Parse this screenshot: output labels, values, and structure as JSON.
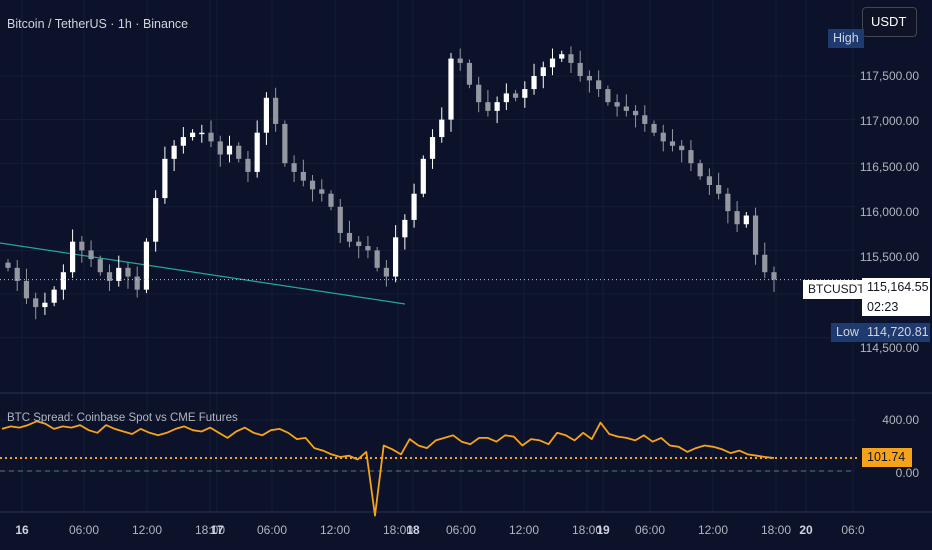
{
  "header": {
    "symbol_title": "Bitcoin / TetherUS · 1h · Binance",
    "currency_button": "USDT"
  },
  "price_axis": {
    "ticks": [
      "117,500.00",
      "117,000.00",
      "116,500.00",
      "116,000.00",
      "115,500.00",
      "114,500.00"
    ],
    "high_label": "High",
    "low_label": "Low",
    "low_value": "114,720.81",
    "symbol_tag": "BTCUSDT",
    "last_price": "115,164.55",
    "countdown": "02:23"
  },
  "indicator": {
    "title": "BTC Spread: Coinbase Spot vs CME Futures",
    "ticks": [
      "400.00",
      "0.00"
    ],
    "current_value": "101.74"
  },
  "time_axis": [
    {
      "label": "16",
      "day": true
    },
    {
      "label": "06:00",
      "day": false
    },
    {
      "label": "12:00",
      "day": false
    },
    {
      "label": "18:00",
      "day": false
    },
    {
      "label": "17",
      "day": true
    },
    {
      "label": "06:00",
      "day": false
    },
    {
      "label": "12:00",
      "day": false
    },
    {
      "label": "18:00",
      "day": false
    },
    {
      "label": "18",
      "day": true
    },
    {
      "label": "06:00",
      "day": false
    },
    {
      "label": "12:00",
      "day": false
    },
    {
      "label": "18:00",
      "day": false
    },
    {
      "label": "19",
      "day": true
    },
    {
      "label": "06:00",
      "day": false
    },
    {
      "label": "12:00",
      "day": false
    },
    {
      "label": "18:00",
      "day": false
    },
    {
      "label": "20",
      "day": true
    },
    {
      "label": "06:0",
      "day": false
    }
  ],
  "colors": {
    "background": "#0b1229",
    "candle_up": "#ffffff",
    "candle_down": "#9598a1",
    "spread_line": "#f7a21b",
    "trendline": "#26a69a",
    "axis_tag": "#1e3a6e"
  },
  "chart_data": {
    "type": "candlestick",
    "interval": "1h",
    "series_close": [
      115300,
      115150,
      114950,
      114850,
      114900,
      115050,
      115250,
      115600,
      115500,
      115400,
      115250,
      115150,
      115300,
      115200,
      115050,
      115600,
      116100,
      116550,
      116700,
      116800,
      116850,
      116850,
      116750,
      116600,
      116700,
      116550,
      116400,
      116850,
      117250,
      116950,
      116500,
      116400,
      116300,
      116200,
      116150,
      116000,
      115700,
      115600,
      115550,
      115500,
      115300,
      115200,
      115650,
      115850,
      116150,
      116550,
      116800,
      117000,
      117700,
      117650,
      117400,
      117200,
      117100,
      117200,
      117300,
      117250,
      117350,
      117500,
      117600,
      117700,
      117750,
      117650,
      117500,
      117450,
      117350,
      117200,
      117150,
      117100,
      117050,
      116950,
      116850,
      116750,
      116700,
      116650,
      116500,
      116350,
      116250,
      116150,
      115950,
      115800,
      115900,
      115450,
      115250,
      115164.55
    ],
    "price_axis_ticks": [
      114500,
      115000,
      115500,
      116000,
      116500,
      117000,
      117500
    ],
    "low": 114720.81,
    "last": 115164.55,
    "spread_series": [
      330,
      350,
      340,
      360,
      390,
      370,
      330,
      350,
      340,
      360,
      320,
      300,
      360,
      330,
      310,
      290,
      330,
      300,
      280,
      300,
      330,
      350,
      320,
      310,
      340,
      300,
      260,
      310,
      340,
      300,
      280,
      320,
      330,
      300,
      250,
      260,
      180,
      160,
      130,
      110,
      120,
      90,
      150,
      -350,
      200,
      170,
      130,
      250,
      200,
      180,
      240,
      260,
      280,
      230,
      210,
      260,
      260,
      230,
      280,
      270,
      200,
      250,
      240,
      210,
      300,
      280,
      240,
      300,
      250,
      380,
      290,
      270,
      260,
      240,
      280,
      230,
      260,
      200,
      190,
      150,
      180,
      200,
      190,
      170,
      140,
      160,
      130,
      120,
      110,
      101.74
    ],
    "spread_ticks": [
      400,
      0
    ],
    "spread_last": 101.74
  }
}
